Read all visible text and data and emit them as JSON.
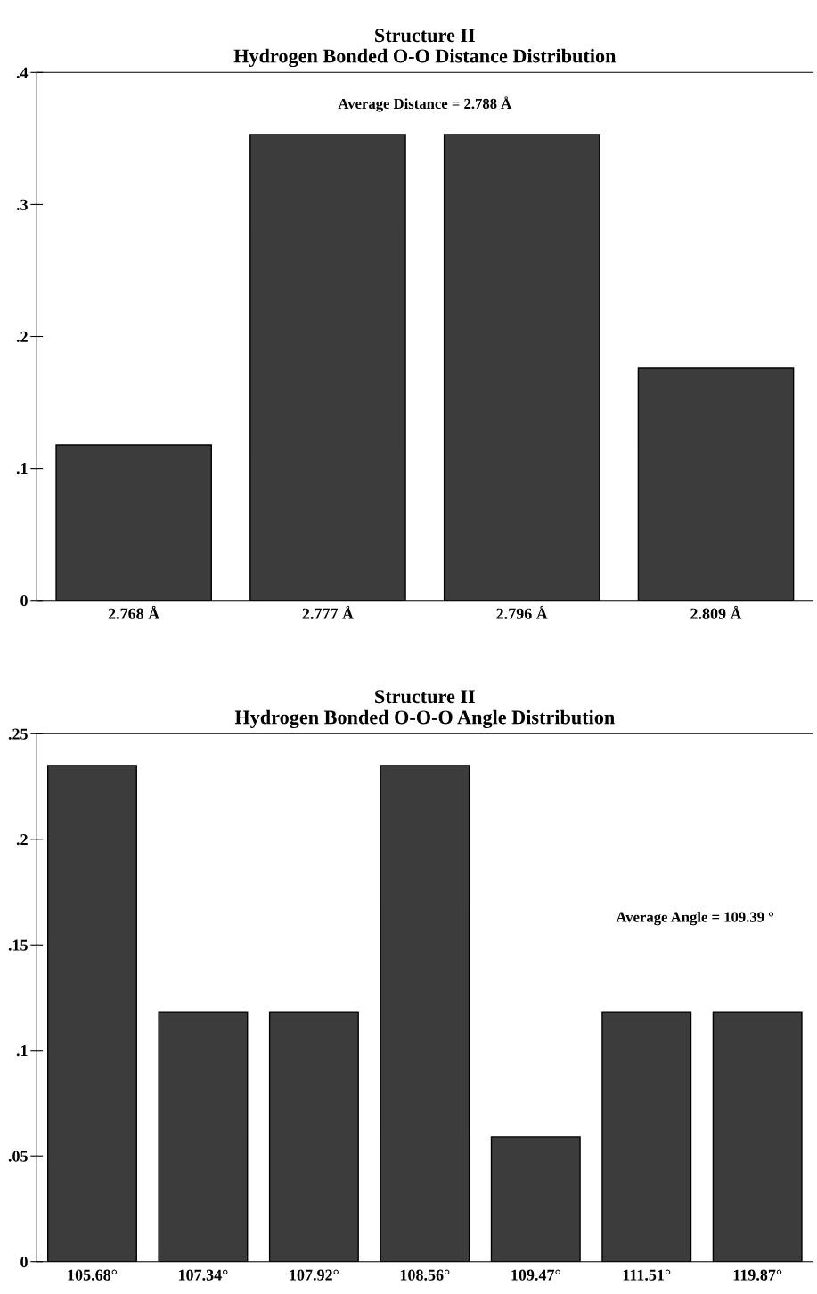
{
  "chart_data": [
    {
      "type": "bar",
      "title": "Structure II\nHydrogen Bonded O-O Distance Distribution",
      "categories": [
        "2.768 Å",
        "2.777 Å",
        "2.796 Å",
        "2.809 Å"
      ],
      "values": [
        0.118,
        0.353,
        0.353,
        0.176
      ],
      "color": "#3c3c3c",
      "ylim": [
        0,
        0.4
      ],
      "yticks": [
        0,
        {
          "value": 0.1,
          "label": ".1"
        },
        {
          "value": 0.2,
          "label": ".2"
        },
        {
          "value": 0.3,
          "label": ".3"
        },
        {
          "value": 0.4,
          "label": ".4"
        }
      ],
      "annotations": [
        "Average Distance = 2.788 Å"
      ],
      "grid": false
    },
    {
      "type": "bar",
      "title": "Structure II\nHydrogen Bonded O-O-O Angle Distribution",
      "categories": [
        "105.68°",
        "107.34°",
        "107.92°",
        "108.56°",
        "109.47°",
        "111.51°",
        "119.87°"
      ],
      "values": [
        0.235,
        0.118,
        0.118,
        0.235,
        0.059,
        0.118,
        0.118
      ],
      "color": "#3c3c3c",
      "ylim": [
        0,
        0.25
      ],
      "yticks": [
        0,
        {
          "value": 0.05,
          "label": ".05"
        },
        {
          "value": 0.1,
          "label": ".1"
        },
        {
          "value": 0.15,
          "label": ".15"
        },
        {
          "value": 0.2,
          "label": ".2"
        },
        {
          "value": 0.25,
          "label": ".25"
        }
      ],
      "annotations": [
        "Average Angle = 109.39 °"
      ],
      "grid": false
    }
  ]
}
